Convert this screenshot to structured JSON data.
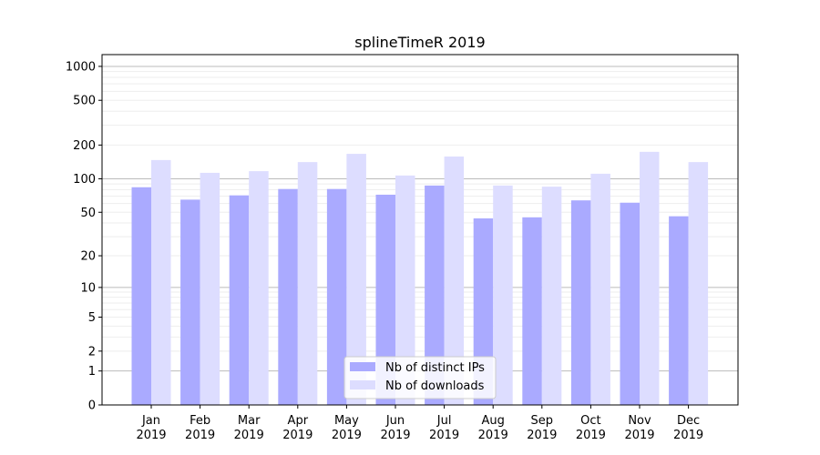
{
  "chart_data": {
    "type": "bar",
    "title": "splineTimeR 2019",
    "xlabel": "",
    "ylabel": "",
    "yscale": "symlog (log10(1+y))",
    "ylim": [
      0,
      1300
    ],
    "yticks": [
      0,
      1,
      2,
      5,
      10,
      20,
      50,
      100,
      200,
      500,
      1000
    ],
    "grid": true,
    "legend_position": "bottom-center",
    "categories": [
      "Jan\n2019",
      "Feb\n2019",
      "Mar\n2019",
      "Apr\n2019",
      "May\n2019",
      "Jun\n2019",
      "Jul\n2019",
      "Aug\n2019",
      "Sep\n2019",
      "Oct\n2019",
      "Nov\n2019",
      "Dec\n2019"
    ],
    "series": [
      {
        "name": "Nb of distinct IPs",
        "color": "#aaaaff",
        "values": [
          84,
          65,
          71,
          81,
          81,
          72,
          87,
          44,
          45,
          64,
          61,
          46
        ]
      },
      {
        "name": "Nb of downloads",
        "color": "#ddddff",
        "values": [
          147,
          113,
          117,
          141,
          167,
          107,
          158,
          87,
          85,
          111,
          174,
          141
        ]
      }
    ]
  }
}
